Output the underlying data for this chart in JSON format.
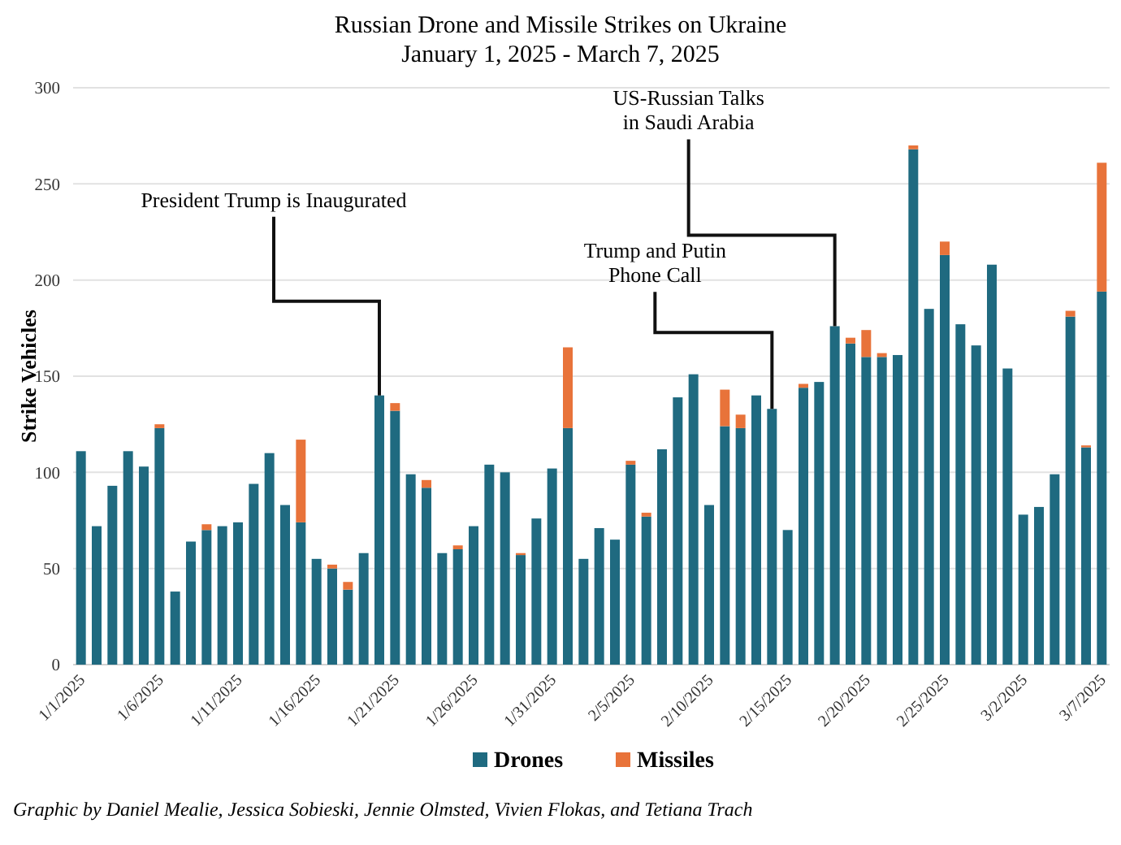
{
  "chart_data": {
    "type": "bar",
    "stacked": true,
    "title": "Russian Drone and Missile Strikes on Ukraine",
    "subtitle": "January 1, 2025 - March 7, 2025",
    "ylabel": "Strike Vehicles",
    "x": [
      "2025-01-01",
      "2025-01-02",
      "2025-01-03",
      "2025-01-04",
      "2025-01-05",
      "2025-01-06",
      "2025-01-07",
      "2025-01-08",
      "2025-01-09",
      "2025-01-10",
      "2025-01-11",
      "2025-01-12",
      "2025-01-13",
      "2025-01-14",
      "2025-01-15",
      "2025-01-16",
      "2025-01-17",
      "2025-01-18",
      "2025-01-19",
      "2025-01-20",
      "2025-01-21",
      "2025-01-22",
      "2025-01-23",
      "2025-01-24",
      "2025-01-25",
      "2025-01-26",
      "2025-01-27",
      "2025-01-28",
      "2025-01-29",
      "2025-01-30",
      "2025-01-31",
      "2025-02-01",
      "2025-02-02",
      "2025-02-03",
      "2025-02-04",
      "2025-02-05",
      "2025-02-06",
      "2025-02-07",
      "2025-02-08",
      "2025-02-09",
      "2025-02-10",
      "2025-02-11",
      "2025-02-12",
      "2025-02-13",
      "2025-02-14",
      "2025-02-15",
      "2025-02-16",
      "2025-02-17",
      "2025-02-18",
      "2025-02-19",
      "2025-02-20",
      "2025-02-21",
      "2025-02-22",
      "2025-02-23",
      "2025-02-24",
      "2025-02-25",
      "2025-02-26",
      "2025-02-27",
      "2025-02-28",
      "2025-03-01",
      "2025-03-02",
      "2025-03-03",
      "2025-03-04",
      "2025-03-05",
      "2025-03-06",
      "2025-03-07"
    ],
    "xlim": [
      "2024-12-31T12:00",
      "2025-03-07T12:00"
    ],
    "xticks": [
      {
        "value": "2025-01-01",
        "label": "1/1/2025"
      },
      {
        "value": "2025-01-06",
        "label": "1/6/2025"
      },
      {
        "value": "2025-01-11",
        "label": "1/11/2025"
      },
      {
        "value": "2025-01-16",
        "label": "1/16/2025"
      },
      {
        "value": "2025-01-21",
        "label": "1/21/2025"
      },
      {
        "value": "2025-01-26",
        "label": "1/26/2025"
      },
      {
        "value": "2025-01-31",
        "label": "1/31/2025"
      },
      {
        "value": "2025-02-05",
        "label": "2/5/2025"
      },
      {
        "value": "2025-02-10",
        "label": "2/10/2025"
      },
      {
        "value": "2025-02-15",
        "label": "2/15/2025"
      },
      {
        "value": "2025-02-20",
        "label": "2/20/2025"
      },
      {
        "value": "2025-02-25",
        "label": "2/25/2025"
      },
      {
        "value": "2025-03-02",
        "label": "3/2/2025"
      },
      {
        "value": "2025-03-07",
        "label": "3/7/2025"
      }
    ],
    "ylim": [
      0,
      300
    ],
    "yticks": [
      0,
      50,
      100,
      150,
      200,
      250,
      300
    ],
    "grid": "y",
    "legend": "bottom",
    "series": [
      {
        "name": "Drones",
        "color": "#1f6a80",
        "values": [
          111,
          72,
          93,
          111,
          103,
          123,
          38,
          64,
          70,
          72,
          74,
          94,
          110,
          83,
          74,
          55,
          50,
          39,
          58,
          140,
          132,
          99,
          92,
          58,
          60,
          72,
          104,
          100,
          57,
          76,
          102,
          123,
          55,
          71,
          65,
          104,
          77,
          112,
          139,
          151,
          83,
          124,
          123,
          140,
          133,
          70,
          144,
          147,
          176,
          167,
          160,
          160,
          161,
          268,
          185,
          213,
          177,
          166,
          208,
          154,
          78,
          82,
          99,
          181,
          113,
          194
        ]
      },
      {
        "name": "Missiles",
        "color": "#e8733a",
        "values": [
          0,
          0,
          0,
          0,
          0,
          2,
          0,
          0,
          3,
          0,
          0,
          0,
          0,
          0,
          43,
          0,
          2,
          4,
          0,
          0,
          4,
          0,
          4,
          0,
          2,
          0,
          0,
          0,
          1,
          0,
          0,
          42,
          0,
          0,
          0,
          2,
          2,
          0,
          0,
          0,
          0,
          19,
          7,
          0,
          0,
          0,
          2,
          0,
          0,
          3,
          14,
          2,
          0,
          2,
          0,
          7,
          0,
          0,
          0,
          0,
          0,
          0,
          0,
          3,
          1,
          67
        ]
      }
    ],
    "annotations": [
      {
        "text": "President Trump is Inaugurated",
        "x": "2025-01-20",
        "y": 140
      },
      {
        "text": "Trump and Putin\nPhone Call",
        "x": "2025-02-14",
        "y": 133
      },
      {
        "text": "US-Russian Talks\nin Saudi Arabia",
        "x": "2025-02-18",
        "y": 176
      },
      "Graphic by Daniel Mealie, Jessica Sobieski, Jennie Olmsted, Vivien Flokas, and Tetiana Trach"
    ]
  }
}
